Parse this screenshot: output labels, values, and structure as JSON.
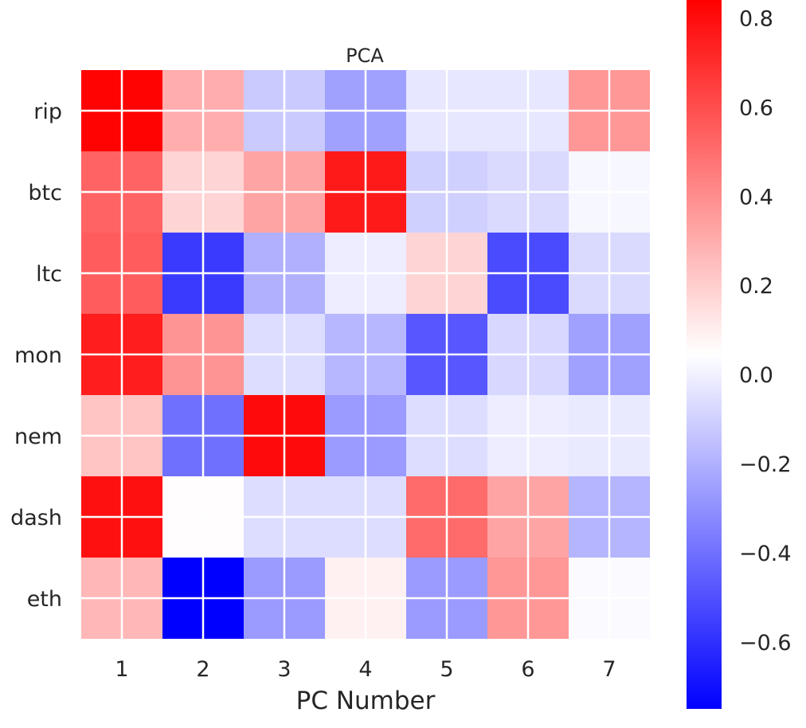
{
  "chart_data": {
    "type": "heatmap",
    "title": "PCA",
    "xlabel": "PC Number",
    "ylabel": "",
    "x": [
      "1",
      "2",
      "3",
      "4",
      "5",
      "6",
      "7"
    ],
    "y": [
      "rip",
      "btc",
      "ltc",
      "mon",
      "nem",
      "dash",
      "eth"
    ],
    "values": [
      [
        0.83,
        0.3,
        -0.12,
        -0.25,
        -0.03,
        -0.03,
        0.37
      ],
      [
        0.53,
        0.18,
        0.33,
        0.76,
        -0.1,
        -0.07,
        0.02
      ],
      [
        0.55,
        -0.57,
        -0.2,
        -0.01,
        0.18,
        -0.52,
        -0.07
      ],
      [
        0.75,
        0.38,
        -0.06,
        -0.18,
        -0.48,
        -0.08,
        -0.25
      ],
      [
        0.23,
        -0.4,
        0.81,
        -0.27,
        -0.06,
        -0.01,
        -0.02
      ],
      [
        0.79,
        0.05,
        -0.06,
        -0.06,
        0.51,
        0.33,
        -0.19
      ],
      [
        0.27,
        -0.75,
        -0.27,
        0.09,
        -0.27,
        0.37,
        0.03
      ]
    ],
    "colormap": "bwr",
    "vmin": -0.75,
    "vmax": 0.84,
    "colorbar": {
      "ticks": [
        0.8,
        0.6,
        0.4,
        0.2,
        0.0,
        -0.2,
        -0.4,
        -0.6
      ],
      "tick_labels": [
        "0.8",
        "0.6",
        "0.4",
        "0.2",
        "0.0",
        "−0.2",
        "−0.4",
        "−0.6"
      ],
      "placement": "right"
    },
    "grid": true,
    "colors": {
      "low": "#0000ff",
      "mid": "#ffffff",
      "high": "#ff0000",
      "text": "#262626",
      "grid": "#ffffff"
    }
  }
}
